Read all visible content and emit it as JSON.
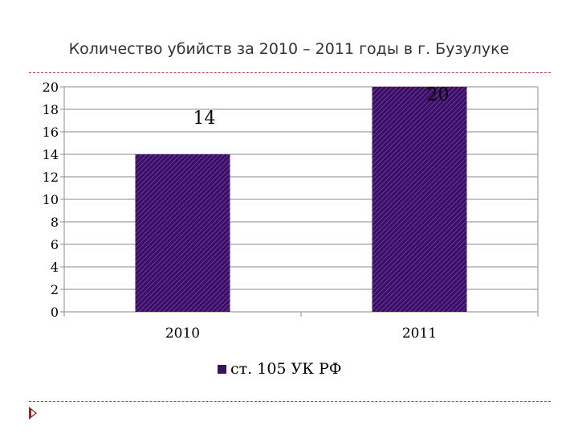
{
  "colors": {
    "bar": "#3a0f63",
    "bar_pattern": "#6a3aa0",
    "title": "#333333",
    "accent": "#a02020"
  },
  "nav": {
    "icon": "triangle-arrow-right-icon"
  },
  "chart_data": {
    "type": "bar",
    "title": "Количество убийств за 2010 – 2011 годы в г. Бузулуке",
    "categories": [
      "2010",
      "2011"
    ],
    "series": [
      {
        "name": "ст. 105 УК РФ",
        "values": [
          14,
          20
        ]
      }
    ],
    "data_labels": [
      "14",
      "20"
    ],
    "yticks": [
      0,
      2,
      4,
      6,
      8,
      10,
      12,
      14,
      16,
      18,
      20
    ],
    "ylim": [
      0,
      20
    ],
    "xlabel": "",
    "ylabel": "",
    "grid": true,
    "legend_position": "bottom"
  }
}
